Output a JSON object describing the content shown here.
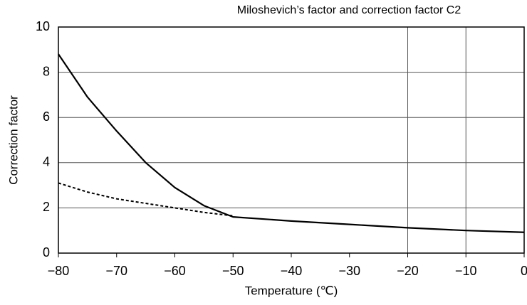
{
  "chart_data": {
    "type": "line",
    "title": "Miloshevich’s factor and correction factor C2",
    "xlabel": "Temperature (℃)",
    "ylabel": "Correction factor",
    "x": [
      -80,
      -75,
      -70,
      -65,
      -60,
      -55,
      -50,
      -40,
      -30,
      -20,
      -10,
      0
    ],
    "series": [
      {
        "color": "#000000",
        "dashed": false,
        "values": [
          8.8,
          6.9,
          5.4,
          4.0,
          2.9,
          2.1,
          1.6,
          1.42,
          1.27,
          1.12,
          1.0,
          0.92
        ]
      },
      {
        "color": "#000000",
        "dashed": true,
        "values": [
          3.1,
          2.7,
          2.4,
          2.2,
          2.0,
          1.8,
          1.65,
          null,
          null,
          null,
          null,
          null
        ]
      }
    ],
    "xlim": [
      -80,
      0
    ],
    "xticks": [
      {
        "value": -80,
        "label": "−80"
      },
      {
        "value": -70,
        "label": "−70"
      },
      {
        "value": -60,
        "label": "−60"
      },
      {
        "value": -50,
        "label": "−50"
      },
      {
        "value": -40,
        "label": "−40"
      },
      {
        "value": -30,
        "label": "−30"
      },
      {
        "value": -20,
        "label": "−20"
      },
      {
        "value": -10,
        "label": "−10"
      },
      0
    ],
    "x_grid_lines": [
      -20,
      -10
    ],
    "ylim": [
      0,
      10
    ],
    "yticks": [
      0,
      2,
      4,
      6,
      8,
      10
    ],
    "grid": true
  }
}
